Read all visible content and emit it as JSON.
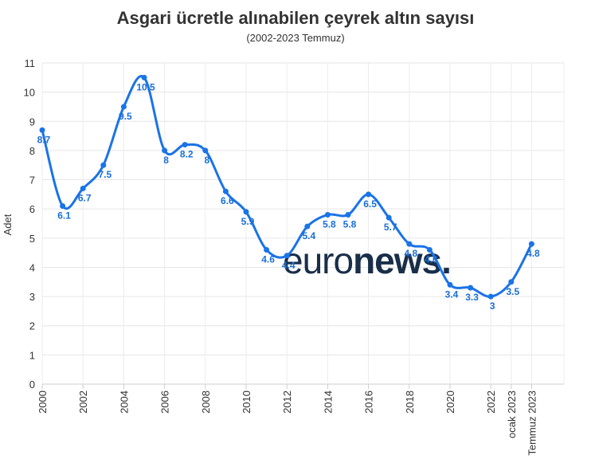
{
  "chart_data": {
    "type": "line",
    "title": "Asgari ücretle alınabilen çeyrek altın sayısı",
    "subtitle": "(2002-2023 Temmuz)",
    "xlabel": "",
    "ylabel": "Adet",
    "ylim": [
      0,
      11
    ],
    "yticks": [
      0,
      1,
      2,
      3,
      4,
      5,
      6,
      7,
      8,
      9,
      10,
      11
    ],
    "x": [
      "2000",
      "2001",
      "2002",
      "2003",
      "2004",
      "2005",
      "2006",
      "2007",
      "2008",
      "2009",
      "2010",
      "2011",
      "2012",
      "2013",
      "2014",
      "2015",
      "2016",
      "2017",
      "2018",
      "2019",
      "2020",
      "2021",
      "2022",
      "ocak 2023",
      "Temmuz 2023"
    ],
    "x_tick_labels": [
      "2000",
      "2002",
      "2004",
      "2006",
      "2008",
      "2010",
      "2012",
      "2014",
      "2016",
      "2018",
      "2020",
      "2022",
      "ocak 2023",
      "Temmuz 2023"
    ],
    "series": [
      {
        "values": [
          8.7,
          6.1,
          6.7,
          7.5,
          9.5,
          10.5,
          8,
          8.2,
          8,
          6.6,
          5.9,
          4.6,
          4.4,
          5.4,
          5.8,
          5.8,
          6.5,
          5.7,
          4.8,
          4.6,
          3.4,
          3.3,
          3,
          3.5,
          4.8
        ],
        "labels": [
          "8.7",
          "6.1",
          "6.7",
          "7.5",
          "9.5",
          "10.5",
          "8",
          "8.2",
          "8",
          "6.6",
          "5.9",
          "4.6",
          "4.4",
          "5.4",
          "5.8",
          "5.8",
          "6.5",
          "5.7",
          "4.8",
          "4.6",
          "3.4",
          "3.3",
          "3",
          "3.5",
          "4.8"
        ],
        "color": "#1a73e8"
      }
    ],
    "grid": true,
    "legend": "none"
  },
  "watermark": {
    "light": "euro",
    "bold": "news.",
    "color": "#0d2340"
  }
}
